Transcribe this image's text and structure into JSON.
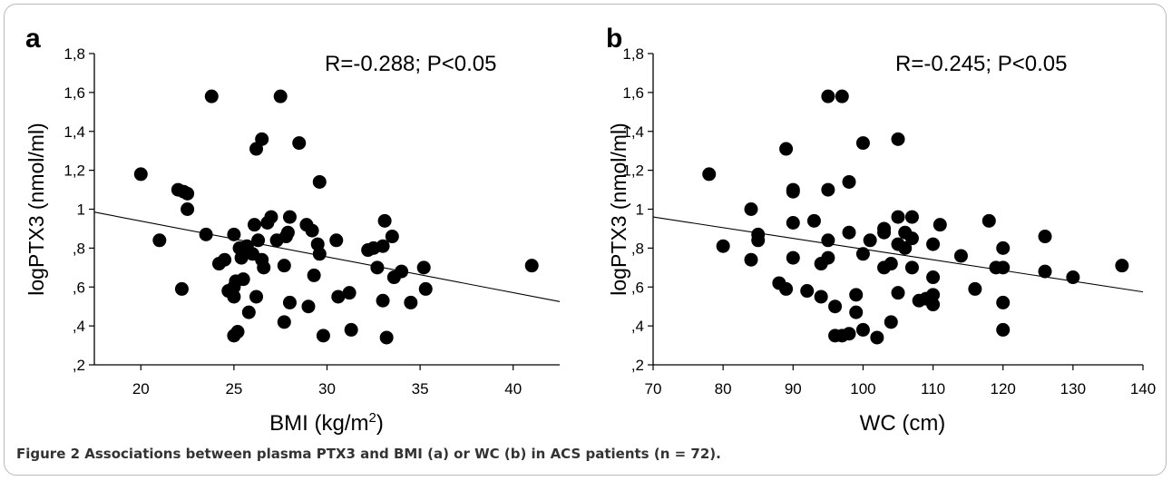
{
  "figure": {
    "caption_label": "Figure 2",
    "caption_text": " Associations between plasma PTX3 and BMI (a) or WC (b) in ACS patients (n = 72)."
  },
  "chart_data": [
    {
      "type": "scatter",
      "panel_label": "a",
      "annotation": "R=-0.288; P<0.05",
      "ylabel": "logPTX3  (nmol/ml)",
      "xlabel_main": "BMI (kg/m",
      "xlabel_sup": "2",
      "xlabel_end": ")",
      "xlim": [
        17.5,
        42.5
      ],
      "ylim": [
        0.2,
        1.8
      ],
      "xticks": [
        20,
        25,
        30,
        35,
        40
      ],
      "xtick_labels": [
        "20",
        "25",
        "30",
        "35",
        "40"
      ],
      "yticks": [
        0.2,
        0.4,
        0.6,
        0.8,
        1.0,
        1.2,
        1.4,
        1.6,
        1.8
      ],
      "ytick_labels": [
        ",2",
        ",4",
        ",6",
        ",8",
        "1",
        "1,2",
        "1,4",
        "1,6",
        "1,8"
      ],
      "grid": false,
      "regression": {
        "x": [
          17.5,
          42.5
        ],
        "y": [
          0.985,
          0.525
        ]
      },
      "points": [
        [
          20.0,
          1.18
        ],
        [
          21.0,
          0.84
        ],
        [
          22.0,
          1.1
        ],
        [
          22.2,
          0.59
        ],
        [
          22.3,
          1.09
        ],
        [
          22.5,
          1.08
        ],
        [
          22.5,
          1.0
        ],
        [
          23.5,
          0.87
        ],
        [
          23.8,
          1.58
        ],
        [
          24.2,
          0.72
        ],
        [
          24.5,
          0.74
        ],
        [
          24.7,
          0.58
        ],
        [
          25.0,
          0.55
        ],
        [
          25.0,
          0.87
        ],
        [
          25.0,
          0.6
        ],
        [
          25.0,
          0.35
        ],
        [
          25.1,
          0.63
        ],
        [
          25.2,
          0.37
        ],
        [
          25.3,
          0.8
        ],
        [
          25.4,
          0.75
        ],
        [
          25.5,
          0.64
        ],
        [
          25.7,
          0.81
        ],
        [
          25.8,
          0.47
        ],
        [
          26.0,
          0.77
        ],
        [
          26.1,
          0.92
        ],
        [
          26.2,
          0.55
        ],
        [
          26.2,
          1.31
        ],
        [
          26.3,
          0.84
        ],
        [
          26.5,
          0.74
        ],
        [
          26.6,
          0.7
        ],
        [
          26.5,
          1.36
        ],
        [
          26.8,
          0.93
        ],
        [
          27.0,
          0.96
        ],
        [
          27.3,
          0.84
        ],
        [
          27.5,
          1.58
        ],
        [
          27.7,
          0.42
        ],
        [
          27.7,
          0.71
        ],
        [
          27.8,
          0.86
        ],
        [
          27.9,
          0.88
        ],
        [
          28.0,
          0.96
        ],
        [
          28.0,
          0.52
        ],
        [
          28.5,
          1.34
        ],
        [
          28.9,
          0.92
        ],
        [
          29.0,
          0.5
        ],
        [
          29.2,
          0.89
        ],
        [
          29.3,
          0.66
        ],
        [
          29.5,
          0.82
        ],
        [
          29.6,
          1.14
        ],
        [
          29.6,
          0.77
        ],
        [
          29.8,
          0.35
        ],
        [
          30.5,
          0.84
        ],
        [
          30.6,
          0.55
        ],
        [
          31.2,
          0.57
        ],
        [
          31.3,
          0.38
        ],
        [
          32.2,
          0.79
        ],
        [
          32.5,
          0.8
        ],
        [
          32.7,
          0.7
        ],
        [
          33.0,
          0.81
        ],
        [
          33.0,
          0.53
        ],
        [
          33.1,
          0.94
        ],
        [
          33.2,
          0.34
        ],
        [
          33.5,
          0.86
        ],
        [
          33.6,
          0.65
        ],
        [
          34.0,
          0.68
        ],
        [
          34.5,
          0.52
        ],
        [
          35.2,
          0.7
        ],
        [
          35.3,
          0.59
        ],
        [
          41.0,
          0.71
        ]
      ]
    },
    {
      "type": "scatter",
      "panel_label": "b",
      "annotation": "R=-0.245; P<0.05",
      "ylabel": "logPTX3  (nmol/ml)",
      "xlabel_main": "WC (cm)",
      "xlabel_sup": "",
      "xlabel_end": "",
      "xlim": [
        70,
        140
      ],
      "ylim": [
        0.2,
        1.8
      ],
      "xticks": [
        70,
        80,
        90,
        100,
        110,
        120,
        130,
        140
      ],
      "xtick_labels": [
        "70",
        "80",
        "90",
        "100",
        "110",
        "120",
        "130",
        "140"
      ],
      "yticks": [
        0.2,
        0.4,
        0.6,
        0.8,
        1.0,
        1.2,
        1.4,
        1.6,
        1.8
      ],
      "ytick_labels": [
        ",2",
        ",4",
        ",6",
        ",8",
        "1",
        "1,2",
        "1,4",
        "1,6",
        "1,8"
      ],
      "grid": false,
      "regression": {
        "x": [
          70,
          140
        ],
        "y": [
          0.96,
          0.575
        ]
      },
      "points": [
        [
          78,
          1.18
        ],
        [
          80,
          0.81
        ],
        [
          84,
          1.0
        ],
        [
          84,
          0.74
        ],
        [
          85,
          0.87
        ],
        [
          85,
          0.84
        ],
        [
          88,
          0.62
        ],
        [
          89,
          1.31
        ],
        [
          89,
          0.59
        ],
        [
          90,
          1.1
        ],
        [
          90,
          1.09
        ],
        [
          90,
          0.93
        ],
        [
          90,
          0.75
        ],
        [
          92,
          0.58
        ],
        [
          93,
          0.94
        ],
        [
          94,
          0.72
        ],
        [
          94,
          0.55
        ],
        [
          95,
          1.58
        ],
        [
          95,
          1.1
        ],
        [
          95,
          0.84
        ],
        [
          95,
          0.75
        ],
        [
          96,
          0.5
        ],
        [
          96,
          0.35
        ],
        [
          97,
          1.58
        ],
        [
          97,
          0.35
        ],
        [
          98,
          0.88
        ],
        [
          98,
          0.36
        ],
        [
          98,
          1.14
        ],
        [
          99,
          0.56
        ],
        [
          99,
          0.47
        ],
        [
          100,
          0.77
        ],
        [
          100,
          0.38
        ],
        [
          100,
          1.34
        ],
        [
          101,
          0.84
        ],
        [
          102,
          0.34
        ],
        [
          103,
          0.88
        ],
        [
          103,
          0.9
        ],
        [
          103,
          0.7
        ],
        [
          104,
          0.72
        ],
        [
          104,
          0.42
        ],
        [
          105,
          0.96
        ],
        [
          105,
          0.82
        ],
        [
          105,
          0.57
        ],
        [
          105,
          1.36
        ],
        [
          106,
          0.88
        ],
        [
          106,
          0.8
        ],
        [
          107,
          0.96
        ],
        [
          107,
          0.85
        ],
        [
          107,
          0.7
        ],
        [
          108,
          0.53
        ],
        [
          109,
          0.54
        ],
        [
          110,
          0.82
        ],
        [
          110,
          0.65
        ],
        [
          110,
          0.56
        ],
        [
          110,
          0.51
        ],
        [
          111,
          0.92
        ],
        [
          114,
          0.76
        ],
        [
          116,
          0.59
        ],
        [
          118,
          0.94
        ],
        [
          119,
          0.7
        ],
        [
          120,
          0.8
        ],
        [
          120,
          0.7
        ],
        [
          120,
          0.52
        ],
        [
          120,
          0.38
        ],
        [
          126,
          0.86
        ],
        [
          126,
          0.68
        ],
        [
          130,
          0.65
        ],
        [
          137,
          0.71
        ]
      ]
    }
  ]
}
